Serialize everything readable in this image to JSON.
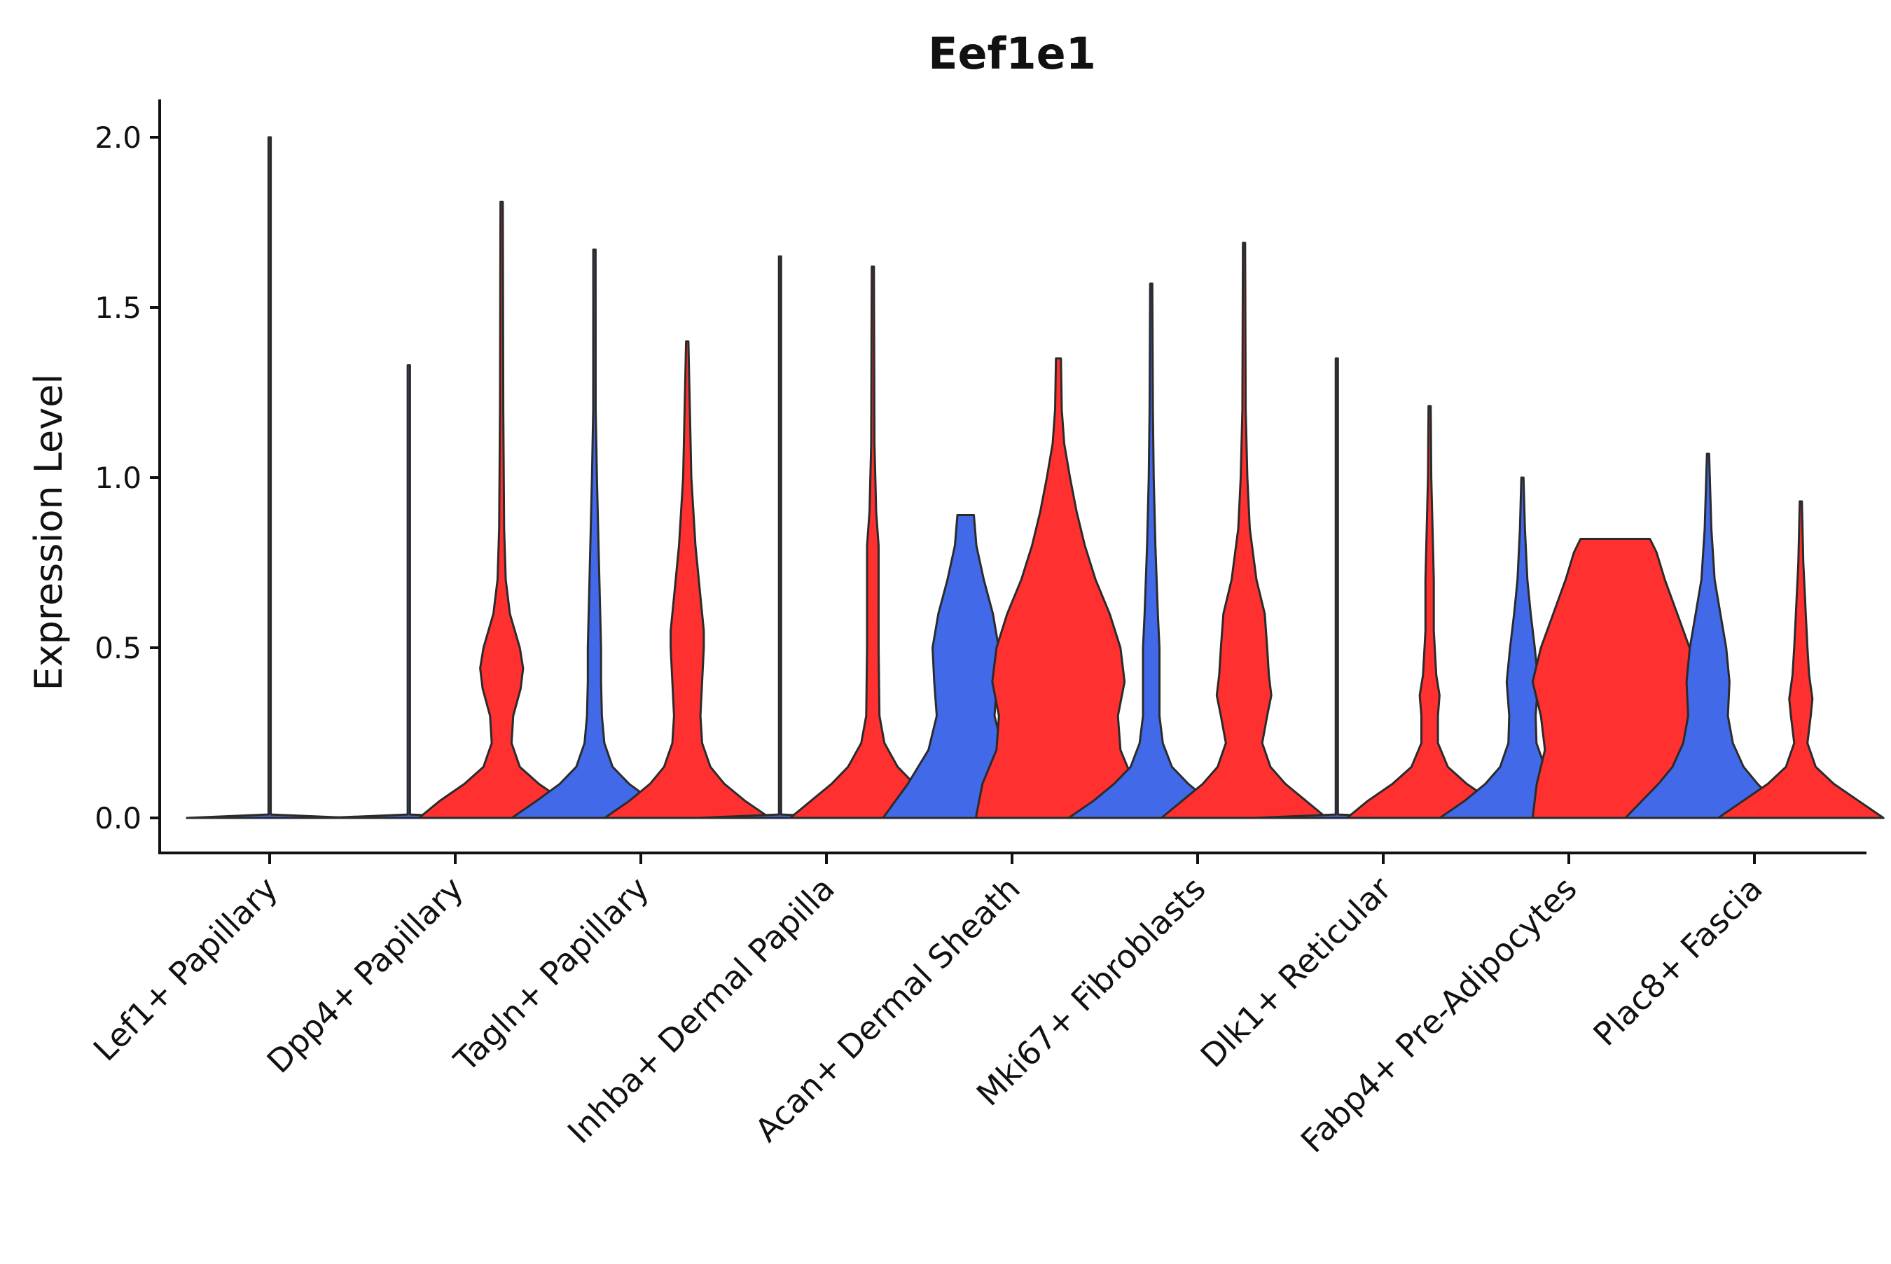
{
  "chart_data": {
    "type": "violin",
    "title": "Eef1e1",
    "xlabel": "",
    "ylabel": "Expression Level",
    "ylim": [
      -0.1,
      2.1
    ],
    "yticks": [
      "0.0",
      "0.5",
      "1.0",
      "1.5",
      "2.0"
    ],
    "categories": [
      "Lef1+ Papillary",
      "Dpp4+ Papillary",
      "Tagln+ Papillary",
      "Inhba+ Dermal Papilla",
      "Acan+ Dermal Sheath",
      "Mki67+ Fibroblasts",
      "Dlk1+ Reticular",
      "Fabp4+ Pre-Adipocytes",
      "Plac8+ Fascia"
    ],
    "series_colors": {
      "blue": "#4169e8",
      "red": "#ff3030"
    },
    "groups": [
      {
        "category": "Lef1+ Papillary",
        "violins": [
          {
            "color": "blue",
            "ymax": 2.0,
            "profile": [
              [
                0,
                1.0
              ],
              [
                0.01,
                0.01
              ],
              [
                2.0,
                0.004
              ]
            ]
          }
        ]
      },
      {
        "category": "Dpp4+ Papillary",
        "violins": [
          {
            "color": "blue",
            "ymax": 1.33,
            "profile": [
              [
                0,
                1.0
              ],
              [
                0.01,
                0.01
              ],
              [
                1.33,
                0.004
              ]
            ]
          },
          {
            "color": "red",
            "ymax": 1.81,
            "profile": [
              [
                0,
                1.0
              ],
              [
                0.05,
                0.75
              ],
              [
                0.1,
                0.45
              ],
              [
                0.15,
                0.22
              ],
              [
                0.22,
                0.12
              ],
              [
                0.3,
                0.14
              ],
              [
                0.38,
                0.23
              ],
              [
                0.44,
                0.26
              ],
              [
                0.5,
                0.22
              ],
              [
                0.6,
                0.1
              ],
              [
                0.7,
                0.05
              ],
              [
                0.85,
                0.03
              ],
              [
                1.2,
                0.02
              ],
              [
                1.81,
                0.005
              ]
            ]
          }
        ]
      },
      {
        "category": "Tagln+ Papillary",
        "violins": [
          {
            "color": "blue",
            "ymax": 1.67,
            "profile": [
              [
                0,
                1.0
              ],
              [
                0.05,
                0.7
              ],
              [
                0.1,
                0.42
              ],
              [
                0.15,
                0.22
              ],
              [
                0.22,
                0.12
              ],
              [
                0.3,
                0.09
              ],
              [
                0.4,
                0.08
              ],
              [
                0.5,
                0.08
              ],
              [
                0.6,
                0.07
              ],
              [
                0.8,
                0.05
              ],
              [
                1.0,
                0.03
              ],
              [
                1.2,
                0.015
              ],
              [
                1.67,
                0.005
              ]
            ]
          },
          {
            "color": "red",
            "ymax": 1.4,
            "profile": [
              [
                0,
                1.0
              ],
              [
                0.05,
                0.7
              ],
              [
                0.1,
                0.45
              ],
              [
                0.15,
                0.28
              ],
              [
                0.22,
                0.18
              ],
              [
                0.3,
                0.16
              ],
              [
                0.4,
                0.18
              ],
              [
                0.5,
                0.2
              ],
              [
                0.55,
                0.2
              ],
              [
                0.65,
                0.16
              ],
              [
                0.8,
                0.1
              ],
              [
                1.0,
                0.05
              ],
              [
                1.4,
                0.005
              ]
            ]
          }
        ]
      },
      {
        "category": "Inhba+ Dermal Papilla",
        "violins": [
          {
            "color": "blue",
            "ymax": 1.65,
            "profile": [
              [
                0,
                1.0
              ],
              [
                0.01,
                0.01
              ],
              [
                1.65,
                0.004
              ]
            ]
          },
          {
            "color": "red",
            "ymax": 1.62,
            "profile": [
              [
                0,
                1.0
              ],
              [
                0.05,
                0.75
              ],
              [
                0.1,
                0.5
              ],
              [
                0.15,
                0.3
              ],
              [
                0.22,
                0.14
              ],
              [
                0.3,
                0.08
              ],
              [
                0.5,
                0.07
              ],
              [
                0.7,
                0.07
              ],
              [
                0.8,
                0.07
              ],
              [
                0.9,
                0.04
              ],
              [
                1.1,
                0.02
              ],
              [
                1.62,
                0.005
              ]
            ]
          }
        ]
      },
      {
        "category": "Acan+ Dermal Sheath",
        "violins": [
          {
            "color": "blue",
            "ymax": 0.89,
            "profile": [
              [
                0,
                1.0
              ],
              [
                0.1,
                0.7
              ],
              [
                0.2,
                0.45
              ],
              [
                0.3,
                0.35
              ],
              [
                0.4,
                0.38
              ],
              [
                0.5,
                0.4
              ],
              [
                0.6,
                0.33
              ],
              [
                0.7,
                0.22
              ],
              [
                0.8,
                0.13
              ],
              [
                0.89,
                0.1
              ]
            ]
          },
          {
            "color": "red",
            "ymax": 1.35,
            "profile": [
              [
                0,
                1.0
              ],
              [
                0.1,
                0.92
              ],
              [
                0.2,
                0.75
              ],
              [
                0.3,
                0.72
              ],
              [
                0.4,
                0.8
              ],
              [
                0.5,
                0.75
              ],
              [
                0.6,
                0.62
              ],
              [
                0.7,
                0.45
              ],
              [
                0.8,
                0.32
              ],
              [
                0.9,
                0.22
              ],
              [
                1.0,
                0.14
              ],
              [
                1.1,
                0.07
              ],
              [
                1.2,
                0.04
              ],
              [
                1.35,
                0.03
              ]
            ]
          }
        ]
      },
      {
        "category": "Mki67+ Fibroblasts",
        "violins": [
          {
            "color": "blue",
            "ymax": 1.57,
            "profile": [
              [
                0,
                1.0
              ],
              [
                0.05,
                0.7
              ],
              [
                0.1,
                0.45
              ],
              [
                0.15,
                0.25
              ],
              [
                0.22,
                0.14
              ],
              [
                0.3,
                0.1
              ],
              [
                0.4,
                0.1
              ],
              [
                0.5,
                0.1
              ],
              [
                0.6,
                0.08
              ],
              [
                0.8,
                0.05
              ],
              [
                1.0,
                0.03
              ],
              [
                1.2,
                0.02
              ],
              [
                1.57,
                0.005
              ]
            ]
          },
          {
            "color": "red",
            "ymax": 1.69,
            "profile": [
              [
                0,
                1.0
              ],
              [
                0.05,
                0.75
              ],
              [
                0.1,
                0.5
              ],
              [
                0.15,
                0.32
              ],
              [
                0.22,
                0.22
              ],
              [
                0.3,
                0.28
              ],
              [
                0.36,
                0.33
              ],
              [
                0.42,
                0.3
              ],
              [
                0.5,
                0.28
              ],
              [
                0.6,
                0.25
              ],
              [
                0.7,
                0.15
              ],
              [
                0.85,
                0.07
              ],
              [
                1.0,
                0.04
              ],
              [
                1.2,
                0.02
              ],
              [
                1.69,
                0.005
              ]
            ]
          }
        ]
      },
      {
        "category": "Dlk1+ Reticular",
        "violins": [
          {
            "color": "blue",
            "ymax": 1.35,
            "profile": [
              [
                0,
                1.0
              ],
              [
                0.01,
                0.01
              ],
              [
                1.35,
                0.004
              ]
            ]
          },
          {
            "color": "red",
            "ymax": 1.21,
            "profile": [
              [
                0,
                1.0
              ],
              [
                0.05,
                0.75
              ],
              [
                0.1,
                0.45
              ],
              [
                0.15,
                0.22
              ],
              [
                0.22,
                0.1
              ],
              [
                0.3,
                0.1
              ],
              [
                0.36,
                0.12
              ],
              [
                0.42,
                0.08
              ],
              [
                0.55,
                0.05
              ],
              [
                0.7,
                0.05
              ],
              [
                0.8,
                0.04
              ],
              [
                1.0,
                0.02
              ],
              [
                1.21,
                0.005
              ]
            ]
          }
        ]
      },
      {
        "category": "Fabp4+ Pre-Adipocytes",
        "violins": [
          {
            "color": "blue",
            "ymax": 1.0,
            "profile": [
              [
                0,
                1.0
              ],
              [
                0.05,
                0.7
              ],
              [
                0.1,
                0.45
              ],
              [
                0.15,
                0.27
              ],
              [
                0.22,
                0.17
              ],
              [
                0.3,
                0.16
              ],
              [
                0.4,
                0.19
              ],
              [
                0.5,
                0.15
              ],
              [
                0.6,
                0.1
              ],
              [
                0.7,
                0.06
              ],
              [
                0.85,
                0.03
              ],
              [
                1.0,
                0.01
              ]
            ]
          },
          {
            "color": "red",
            "ymax": 0.82,
            "profile": [
              [
                0,
                1.0
              ],
              [
                0.1,
                0.95
              ],
              [
                0.2,
                0.85
              ],
              [
                0.3,
                0.9
              ],
              [
                0.4,
                1.0
              ],
              [
                0.5,
                0.9
              ],
              [
                0.6,
                0.75
              ],
              [
                0.7,
                0.6
              ],
              [
                0.78,
                0.5
              ],
              [
                0.82,
                0.42
              ]
            ]
          }
        ]
      },
      {
        "category": "Plac8+ Fascia",
        "violins": [
          {
            "color": "blue",
            "ymax": 1.07,
            "profile": [
              [
                0,
                1.0
              ],
              [
                0.05,
                0.8
              ],
              [
                0.1,
                0.6
              ],
              [
                0.15,
                0.43
              ],
              [
                0.22,
                0.3
              ],
              [
                0.3,
                0.24
              ],
              [
                0.4,
                0.26
              ],
              [
                0.5,
                0.22
              ],
              [
                0.6,
                0.15
              ],
              [
                0.7,
                0.08
              ],
              [
                0.85,
                0.04
              ],
              [
                1.07,
                0.005
              ]
            ]
          },
          {
            "color": "red",
            "ymax": 0.93,
            "profile": [
              [
                0,
                1.0
              ],
              [
                0.05,
                0.7
              ],
              [
                0.1,
                0.4
              ],
              [
                0.15,
                0.18
              ],
              [
                0.22,
                0.08
              ],
              [
                0.3,
                0.12
              ],
              [
                0.35,
                0.14
              ],
              [
                0.42,
                0.1
              ],
              [
                0.5,
                0.08
              ],
              [
                0.6,
                0.06
              ],
              [
                0.75,
                0.03
              ],
              [
                0.93,
                0.005
              ]
            ]
          }
        ]
      }
    ]
  }
}
